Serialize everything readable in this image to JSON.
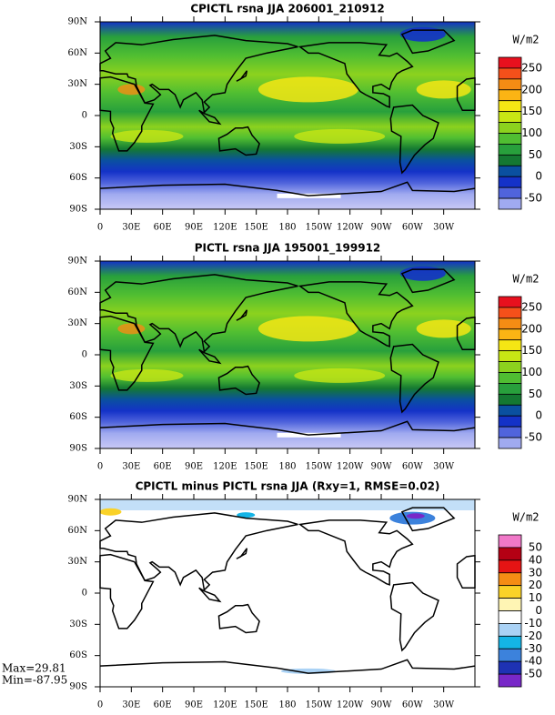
{
  "panels": [
    {
      "title": "CPICTL rsna JJA 206001_210912",
      "units": "W/m2",
      "colorbar_labels": [
        "250",
        "200",
        "150",
        "100",
        "50",
        "0",
        "-50"
      ],
      "colorbar_colors": [
        "#e8101e",
        "#f5501a",
        "#f58c14",
        "#fbb414",
        "#f5e614",
        "#c8e614",
        "#8cd21e",
        "#50be32",
        "#28a03c",
        "#147832",
        "#0a50a0",
        "#1432c8",
        "#5064dc",
        "#a0aaf0"
      ]
    },
    {
      "title": "PICTL rsna JJA 195001_199912",
      "units": "W/m2",
      "colorbar_labels": [
        "250",
        "200",
        "150",
        "100",
        "50",
        "0",
        "-50"
      ],
      "colorbar_colors": [
        "#e8101e",
        "#f5501a",
        "#f58c14",
        "#fbb414",
        "#f5e614",
        "#c8e614",
        "#8cd21e",
        "#50be32",
        "#28a03c",
        "#147832",
        "#0a50a0",
        "#1432c8",
        "#5064dc",
        "#a0aaf0"
      ]
    },
    {
      "title": "CPICTL minus PICTL rsna JJA (Rxy=1, RMSE=0.02)",
      "units": "W/m2",
      "colorbar_labels": [
        "50",
        "40",
        "30",
        "20",
        "10",
        "0",
        "-10",
        "-20",
        "-30",
        "-40",
        "-50"
      ],
      "colorbar_colors": [
        "#f078c8",
        "#b40014",
        "#e61414",
        "#f58c14",
        "#fad228",
        "#fff5b4",
        "#ffffff",
        "#aad2f5",
        "#14b4e6",
        "#3c82dc",
        "#1e32b4",
        "#7828c8"
      ]
    }
  ],
  "lat_labels": [
    "90N",
    "60N",
    "30N",
    "0",
    "30S",
    "60S",
    "90S"
  ],
  "lon_labels": [
    "0",
    "30E",
    "60E",
    "90E",
    "120E",
    "150E",
    "180",
    "150W",
    "120W",
    "90W",
    "60W",
    "30W"
  ],
  "stats": {
    "max": "Max=29.81",
    "min": "Min=-87.95"
  }
}
